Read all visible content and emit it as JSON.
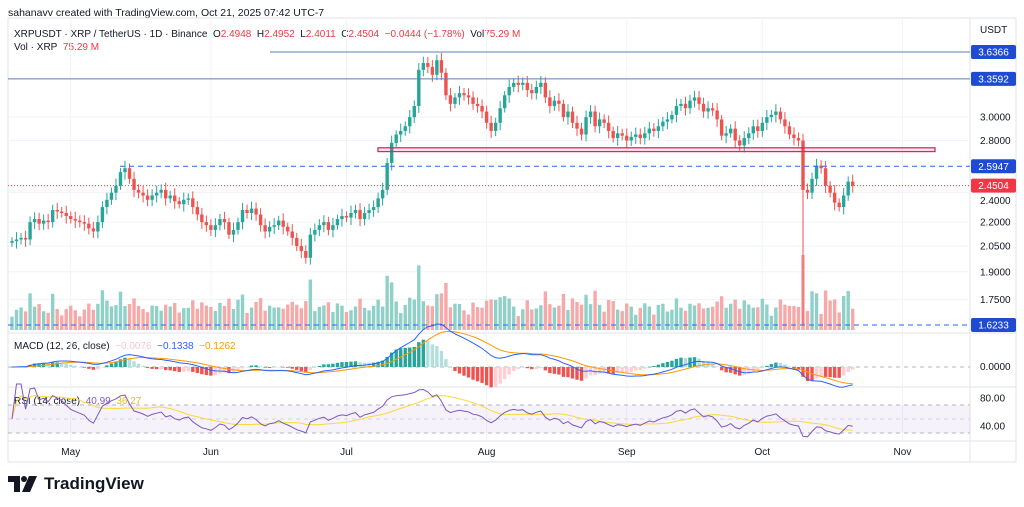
{
  "credit": "sahanavv created with TradingView.com, Oct 21, 2025 07:42 UTC-7",
  "legend": {
    "symbol": "XRPUSDT · XRP / TetherUS · 1D · Binance",
    "o_label": "O",
    "o": "2.4948",
    "h_label": "H",
    "h": "2.4952",
    "l_label": "L",
    "l": "2.4011",
    "c_label": "C",
    "c": "2.4504",
    "change": "−0.0444 (−1.78%)",
    "vol_label": "Vol",
    "vol": "75.29 M"
  },
  "vol_legend": {
    "label": "Vol · XRP",
    "value": "75.29 M"
  },
  "macd_legend": {
    "label": "MACD (12, 26, close)",
    "hist": "−0.0076",
    "macd": "−0.1338",
    "signal": "−0.1262"
  },
  "rsi_legend": {
    "label": "RSI (14, close)",
    "rsi": "40.99",
    "ma": "36.27"
  },
  "currency": "USDT",
  "brand": "TradingView",
  "colors": {
    "up": "#26a69a",
    "down": "#ef5350",
    "up_vol": "#8fd1c9",
    "down_vol": "#f5a9a8",
    "level": "#2962ff",
    "zone": "#e91e63",
    "macd": "#2962ff",
    "signal": "#ff9800",
    "rsi": "#7e57c2",
    "rsi_ma": "#fdd835"
  },
  "chart_data": {
    "type": "candlestick",
    "scale": "log",
    "start_date": "2025-04-18",
    "end_date": "2025-10-21",
    "close": [
      2.08,
      2.09,
      2.1,
      2.09,
      2.2,
      2.22,
      2.19,
      2.21,
      2.2,
      2.28,
      2.27,
      2.26,
      2.24,
      2.22,
      2.21,
      2.2,
      2.19,
      2.16,
      2.14,
      2.2,
      2.3,
      2.35,
      2.4,
      2.45,
      2.55,
      2.58,
      2.5,
      2.42,
      2.4,
      2.38,
      2.35,
      2.38,
      2.4,
      2.42,
      2.36,
      2.38,
      2.34,
      2.32,
      2.35,
      2.36,
      2.3,
      2.25,
      2.2,
      2.18,
      2.15,
      2.18,
      2.22,
      2.2,
      2.12,
      2.15,
      2.2,
      2.28,
      2.26,
      2.29,
      2.25,
      2.18,
      2.14,
      2.17,
      2.18,
      2.21,
      2.17,
      2.14,
      2.1,
      2.05,
      2.02,
      1.98,
      2.12,
      2.15,
      2.18,
      2.2,
      2.15,
      2.18,
      2.22,
      2.24,
      2.23,
      2.26,
      2.28,
      2.22,
      2.26,
      2.28,
      2.3,
      2.36,
      2.42,
      2.62,
      2.78,
      2.85,
      2.88,
      2.92,
      3.0,
      3.1,
      3.45,
      3.52,
      3.48,
      3.4,
      3.55,
      3.42,
      3.2,
      3.12,
      3.18,
      3.22,
      3.2,
      3.18,
      3.12,
      3.1,
      3.05,
      2.95,
      2.88,
      2.95,
      3.08,
      3.2,
      3.28,
      3.32,
      3.3,
      3.32,
      3.25,
      3.22,
      3.28,
      3.32,
      3.18,
      3.1,
      3.15,
      3.12,
      3.0,
      3.05,
      2.95,
      2.9,
      2.85,
      3.0,
      3.05,
      2.92,
      2.98,
      2.95,
      2.88,
      2.82,
      2.86,
      2.84,
      2.8,
      2.83,
      2.85,
      2.82,
      2.86,
      2.9,
      2.88,
      2.92,
      2.96,
      2.98,
      3.02,
      3.1,
      3.12,
      3.08,
      3.15,
      3.18,
      3.12,
      3.05,
      3.08,
      3.06,
      2.98,
      2.84,
      2.86,
      2.9,
      2.8,
      2.76,
      2.82,
      2.86,
      2.92,
      2.88,
      2.95,
      3.0,
      3.02,
      3.05,
      2.98,
      2.92,
      2.85,
      2.82,
      2.8,
      2.42,
      2.4,
      2.5,
      2.6,
      2.58,
      2.45,
      2.4,
      2.33,
      2.3,
      2.38,
      2.48,
      2.4504
    ],
    "notable_low": {
      "date": "2025-10-10",
      "low": 1.6233
    },
    "y_ticks": [
      "3.0000",
      "2.8000",
      "2.4000",
      "2.2000",
      "2.0500",
      "1.9000",
      "1.7500"
    ],
    "y_tick_values": [
      3.0,
      2.8,
      2.4,
      2.2,
      2.05,
      1.9,
      1.75
    ],
    "levels": [
      {
        "value": 3.6366,
        "label": "3.6366",
        "style": "solid"
      },
      {
        "value": 3.3592,
        "label": "3.3592",
        "style": "solid"
      },
      {
        "value": 2.5947,
        "label": "2.5947",
        "style": "dashed"
      },
      {
        "value": 1.6233,
        "label": "1.6233",
        "style": "dashed"
      }
    ],
    "last_price": {
      "value": 2.4504,
      "label": "2.4504"
    },
    "zone": {
      "top": 2.74,
      "bottom": 2.71
    },
    "x_ticks": [
      {
        "label": "May",
        "date": "2025-05-01"
      },
      {
        "label": "Jun",
        "date": "2025-06-01"
      },
      {
        "label": "Jul",
        "date": "2025-07-01"
      },
      {
        "label": "Aug",
        "date": "2025-08-01"
      },
      {
        "label": "Sep",
        "date": "2025-09-01"
      },
      {
        "label": "Oct",
        "date": "2025-10-01"
      },
      {
        "label": "Nov",
        "date": "2025-11-01"
      }
    ],
    "macd_ticks": [
      "0.0000"
    ],
    "rsi_ticks": [
      "80.00",
      "40.00"
    ],
    "rsi_bands": [
      70,
      30
    ]
  }
}
